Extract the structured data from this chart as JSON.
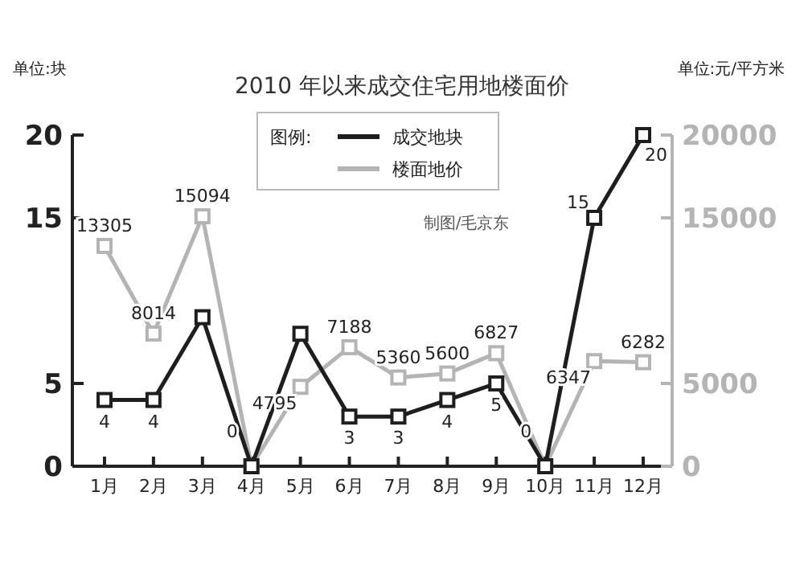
{
  "chart_data": {
    "type": "line",
    "title": "2010 年以来成交住宅用地楼面价",
    "ylabel": "单位:块",
    "y2label": "单位:元/平方米",
    "legend_title": "图例:",
    "annotations": [
      "制图/毛京东"
    ],
    "categories": [
      "1月",
      "2月",
      "3月",
      "4月",
      "5月",
      "6月",
      "7月",
      "8月",
      "9月",
      "10月",
      "11月",
      "12月"
    ],
    "ylim": [
      0,
      20
    ],
    "yticks": [
      0,
      5,
      15,
      20
    ],
    "y2lim": [
      0,
      20000
    ],
    "y2ticks": [
      0,
      5000,
      15000,
      20000
    ],
    "marker": "square",
    "legend": "top",
    "grid": false,
    "series": [
      {
        "name": "成交地块",
        "color": "#1e1e1e",
        "values": [
          4,
          4,
          9,
          0,
          8,
          3,
          3,
          4,
          5,
          0,
          15,
          20
        ],
        "value_labels": [
          "4",
          "4",
          null,
          "0",
          null,
          "3",
          "3",
          "4",
          "5",
          "0",
          "15",
          "20"
        ]
      },
      {
        "name": "楼面地价",
        "color": "#b4b4b4",
        "axis": "y2",
        "values": [
          13305,
          8014,
          15094,
          0,
          4795,
          7188,
          5360,
          5600,
          6827,
          0,
          6347,
          6282
        ],
        "value_labels": [
          "13305",
          "8014",
          "15094",
          null,
          "4795",
          "7188",
          "5360",
          "5600",
          "6827",
          null,
          "6347",
          "6282"
        ]
      }
    ]
  }
}
